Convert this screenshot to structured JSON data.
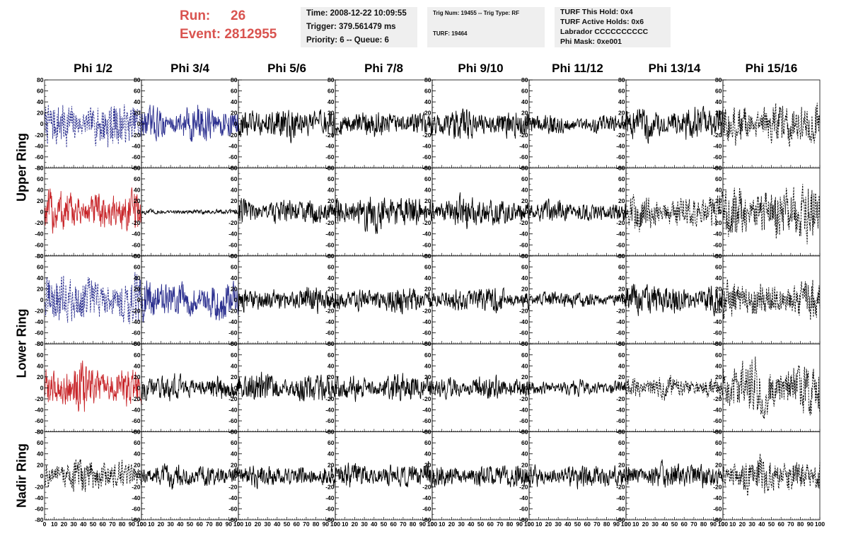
{
  "header": {
    "run_label": "Run:",
    "run_value": "26",
    "event_label": "Event:",
    "event_value": "2812955",
    "colors": {
      "run_text": "#d9534f",
      "info_bg": "#efefef"
    }
  },
  "info_time": {
    "line1": "Time: 2008-12-22 10:09:55",
    "line2": "Trigger: 379.561479 ms",
    "line3": "Priority: 6 -- Queue: 6"
  },
  "info_trig": {
    "line1": "Trig Num: 19455 -- Trig Type: RF",
    "line2": "TURF: 19464"
  },
  "info_turf": {
    "line1": "TURF This Hold: 0x4",
    "line2": "TURF Active Holds: 0x6",
    "line3": "Labrador CCCCCCCCCC",
    "line4": "Phi Mask: 0xe001"
  },
  "columns": [
    "Phi 1/2",
    "Phi 3/4",
    "Phi 5/6",
    "Phi 7/8",
    "Phi 9/10",
    "Phi 11/12",
    "Phi 13/14",
    "Phi 15/16"
  ],
  "ring_labels": [
    "Upper Ring",
    "Lower Ring",
    "Nadir Ring"
  ],
  "chart_data": {
    "type": "line",
    "panel_grid": {
      "rows": 5,
      "cols": 8
    },
    "xlim": [
      0,
      100
    ],
    "ylim": [
      -80,
      80
    ],
    "x_ticks": [
      0,
      10,
      20,
      30,
      40,
      50,
      60,
      70,
      80,
      90,
      100
    ],
    "x_tick_labels_bottom": [
      "0",
      "10",
      "20",
      "30",
      "40",
      "50",
      "60",
      "70",
      "80",
      "90",
      "100"
    ],
    "y_ticks": [
      -80,
      -60,
      -40,
      -20,
      0,
      20,
      40,
      60,
      80
    ],
    "y_tick_labels": [
      "-80",
      "-60",
      "-40",
      "-20",
      "0",
      "20",
      "40",
      "60",
      "80"
    ],
    "colors": {
      "blue": "#2b2f8f",
      "red": "#c8262a",
      "black": "#000000"
    },
    "panels": [
      [
        {
          "color": "blue",
          "dash": true,
          "amp": 28
        },
        {
          "color": "blue",
          "dash": false,
          "amp": 22
        },
        {
          "color": "black",
          "dash": false,
          "amp": 20
        },
        {
          "color": "black",
          "dash": false,
          "amp": 16
        },
        {
          "color": "black",
          "dash": false,
          "amp": 18
        },
        {
          "color": "black",
          "dash": false,
          "amp": 12
        },
        {
          "color": "black",
          "dash": false,
          "amp": 20
        },
        {
          "color": "black",
          "dash": true,
          "amp": 26
        }
      ],
      [
        {
          "color": "red",
          "dash": false,
          "amp": 26
        },
        {
          "color": "black",
          "dash": false,
          "amp": 3
        },
        {
          "color": "black",
          "dash": false,
          "amp": 16
        },
        {
          "color": "black",
          "dash": false,
          "amp": 22
        },
        {
          "color": "black",
          "dash": false,
          "amp": 18
        },
        {
          "color": "black",
          "dash": false,
          "amp": 13
        },
        {
          "color": "black",
          "dash": true,
          "amp": 20
        },
        {
          "color": "black",
          "dash": true,
          "amp": 34
        }
      ],
      [
        {
          "color": "blue",
          "dash": true,
          "amp": 30
        },
        {
          "color": "blue",
          "dash": false,
          "amp": 24
        },
        {
          "color": "black",
          "dash": false,
          "amp": 16
        },
        {
          "color": "black",
          "dash": false,
          "amp": 16
        },
        {
          "color": "black",
          "dash": false,
          "amp": 15
        },
        {
          "color": "black",
          "dash": false,
          "amp": 10
        },
        {
          "color": "black",
          "dash": false,
          "amp": 18
        },
        {
          "color": "black",
          "dash": true,
          "amp": 22
        }
      ],
      [
        {
          "color": "red",
          "dash": false,
          "amp": 26
        },
        {
          "color": "black",
          "dash": false,
          "amp": 15
        },
        {
          "color": "black",
          "dash": false,
          "amp": 18
        },
        {
          "color": "black",
          "dash": false,
          "amp": 16
        },
        {
          "color": "black",
          "dash": false,
          "amp": 14
        },
        {
          "color": "black",
          "dash": false,
          "amp": 9
        },
        {
          "color": "black",
          "dash": true,
          "amp": 14
        },
        {
          "color": "black",
          "dash": true,
          "amp": 34
        }
      ],
      [
        {
          "color": "black",
          "dash": true,
          "amp": 20
        },
        {
          "color": "black",
          "dash": false,
          "amp": 14
        },
        {
          "color": "black",
          "dash": false,
          "amp": 14
        },
        {
          "color": "black",
          "dash": false,
          "amp": 15
        },
        {
          "color": "black",
          "dash": false,
          "amp": 14
        },
        {
          "color": "black",
          "dash": false,
          "amp": 14
        },
        {
          "color": "black",
          "dash": false,
          "amp": 16
        },
        {
          "color": "black",
          "dash": true,
          "amp": 22
        }
      ]
    ]
  }
}
